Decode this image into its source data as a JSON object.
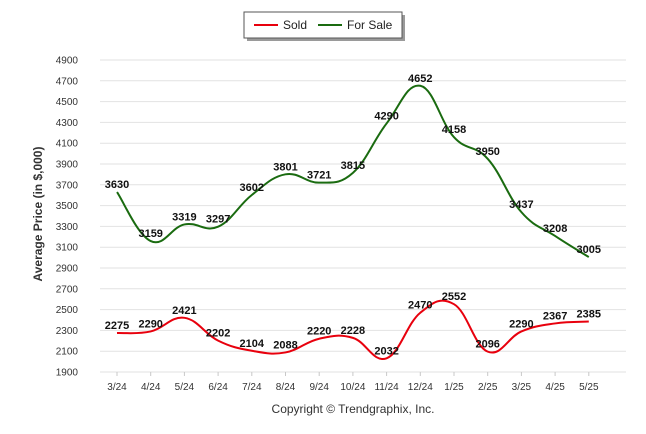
{
  "chart_data": {
    "type": "line",
    "ylabel": "Average Price (in $,000)",
    "categories": [
      "3/24",
      "4/24",
      "5/24",
      "6/24",
      "7/24",
      "8/24",
      "9/24",
      "10/24",
      "11/24",
      "12/24",
      "1/25",
      "2/25",
      "3/25",
      "4/25",
      "5/25"
    ],
    "yticks": [
      1900,
      2100,
      2300,
      2500,
      2700,
      2900,
      3100,
      3300,
      3500,
      3700,
      3900,
      4100,
      4300,
      4500,
      4700,
      4900
    ],
    "ylim": [
      1900,
      4900
    ],
    "grid": true,
    "legend_position": "top-center",
    "series": [
      {
        "name": "Sold",
        "color": "#e8000d",
        "values": [
          2275,
          2290,
          2421,
          2202,
          2104,
          2088,
          2220,
          2228,
          2032,
          2470,
          2552,
          2096,
          2290,
          2367,
          2385
        ]
      },
      {
        "name": "For Sale",
        "color": "#1a6b10",
        "values": [
          3630,
          3159,
          3319,
          3297,
          3602,
          3801,
          3721,
          3815,
          4290,
          4652,
          4158,
          3950,
          3437,
          3208,
          3005
        ]
      }
    ],
    "annotation": "Copyright © Trendgraphix, Inc."
  }
}
